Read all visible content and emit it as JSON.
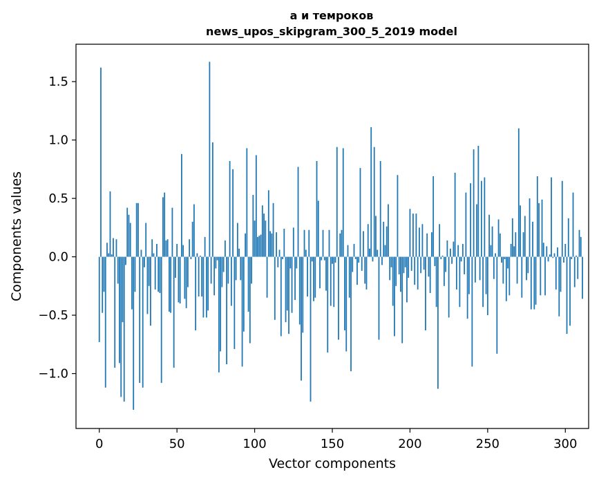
{
  "chart_data": {
    "type": "bar",
    "title": "а и темроков",
    "subtitle": "news_upos_skipgram_300_5_2019 model",
    "xlabel": "Vector components",
    "ylabel": "Components values",
    "xlim": [
      -15,
      315
    ],
    "ylim": [
      -1.47,
      1.82
    ],
    "xticks": [
      0,
      50,
      100,
      150,
      200,
      250,
      300
    ],
    "xtick_labels": [
      "0",
      "50",
      "100",
      "150",
      "200",
      "250",
      "300"
    ],
    "yticks": [
      -1.0,
      -0.5,
      0.0,
      0.5,
      1.0,
      1.5
    ],
    "ytick_labels": [
      "−1.0",
      "−0.5",
      "0.0",
      "0.5",
      "1.0",
      "1.5"
    ],
    "bar_color": "#1f77b4",
    "values": [
      -0.73,
      1.62,
      -0.48,
      -0.3,
      -1.12,
      0.12,
      0.03,
      0.56,
      0.02,
      0.16,
      -0.95,
      0.15,
      -0.23,
      -0.91,
      -1.2,
      -0.56,
      -1.24,
      -0.07,
      0.42,
      0.36,
      0.29,
      -0.45,
      -1.31,
      -0.3,
      0.46,
      0.46,
      -1.08,
      0.06,
      -1.12,
      -0.09,
      0.29,
      -0.49,
      -0.25,
      -0.59,
      0.15,
      0.03,
      -0.28,
      0.11,
      -0.3,
      -0.31,
      -1.08,
      0.51,
      0.55,
      0.14,
      0.15,
      -0.47,
      -0.48,
      0.42,
      -0.95,
      -0.18,
      0.11,
      -0.39,
      -0.4,
      0.88,
      0.1,
      -0.36,
      -0.44,
      -0.26,
      0.15,
      -0.02,
      0.3,
      0.45,
      -0.63,
      0.03,
      -0.34,
      0.01,
      -0.34,
      -0.52,
      0.17,
      -0.52,
      -0.46,
      1.67,
      -0.23,
      0.98,
      -0.33,
      -0.1,
      -0.03,
      -0.99,
      -0.81,
      -0.26,
      -0.13,
      0.14,
      -0.92,
      -0.23,
      0.82,
      -0.42,
      0.75,
      -0.79,
      -0.2,
      0.29,
      0.07,
      -0.2,
      -0.94,
      -0.64,
      0.2,
      0.93,
      -0.47,
      -0.74,
      -0.23,
      0.53,
      0.31,
      0.87,
      0.17,
      0.18,
      0.19,
      0.44,
      0.37,
      0.31,
      -0.35,
      0.57,
      0.22,
      0.2,
      0.46,
      -0.54,
      0.21,
      -0.09,
      0.06,
      -0.68,
      -0.02,
      0.24,
      -0.56,
      -0.46,
      -0.66,
      -0.1,
      -0.48,
      0.25,
      -0.37,
      -0.1,
      0.77,
      -0.58,
      -1.06,
      -0.65,
      0.23,
      0.06,
      -0.34,
      0.23,
      -1.24,
      -0.04,
      -0.38,
      -0.35,
      0.82,
      0.48,
      -0.27,
      -0.03,
      0.23,
      -0.03,
      -0.29,
      -0.82,
      0.23,
      -0.42,
      -0.06,
      -0.43,
      -0.05,
      0.94,
      -0.71,
      0.2,
      0.23,
      0.93,
      -0.63,
      -0.81,
      0.1,
      -0.35,
      -0.98,
      -0.13,
      0.11,
      -0.02,
      -0.24,
      -0.05,
      0.76,
      -0.12,
      0.22,
      -0.23,
      -0.28,
      0.28,
      0.07,
      1.11,
      -0.04,
      0.94,
      0.35,
      0.06,
      -0.71,
      0.82,
      -0.07,
      0.3,
      0.1,
      0.26,
      0.45,
      -0.2,
      -0.09,
      -0.42,
      -0.68,
      -0.25,
      0.7,
      -0.15,
      -0.3,
      -0.74,
      -0.14,
      -0.09,
      -0.39,
      -0.18,
      0.41,
      -0.12,
      0.37,
      -0.24,
      0.37,
      -0.28,
      0.25,
      -0.14,
      0.28,
      -0.11,
      -0.63,
      0.2,
      -0.17,
      -0.31,
      0.21,
      0.69,
      -0.08,
      -0.43,
      -1.13,
      0.28,
      -0.02,
      0.01,
      -0.25,
      -0.13,
      0.14,
      -0.52,
      0.07,
      -0.06,
      0.13,
      0.72,
      -0.28,
      0.1,
      -0.43,
      -0.04,
      0.11,
      -0.15,
      0.55,
      -0.53,
      -0.32,
      0.63,
      -0.94,
      0.92,
      -0.22,
      0.45,
      0.95,
      -0.2,
      0.65,
      -0.43,
      0.68,
      -0.32,
      -0.5,
      0.36,
      0.1,
      0.26,
      -0.19,
      0.03,
      -0.83,
      0.32,
      0.2,
      -0.05,
      -0.23,
      -0.02,
      -0.38,
      -0.1,
      -0.33,
      0.11,
      0.33,
      0.09,
      0.21,
      -0.23,
      1.1,
      0.44,
      -0.35,
      0.21,
      0.35,
      -0.2,
      -0.14,
      0.5,
      -0.45,
      0.3,
      -0.45,
      -0.41,
      0.69,
      0.46,
      -0.33,
      0.49,
      0.12,
      -0.33,
      0.09,
      -0.04,
      0.02,
      0.68,
      -0.01,
      0.03,
      -0.28,
      0.08,
      -0.51,
      -0.3,
      0.65,
      -0.05,
      0.11,
      -0.66,
      0.33,
      -0.59,
      -0.02,
      0.55,
      -0.26,
      0.01,
      -0.19,
      0.23,
      0.17,
      -0.36
    ]
  }
}
